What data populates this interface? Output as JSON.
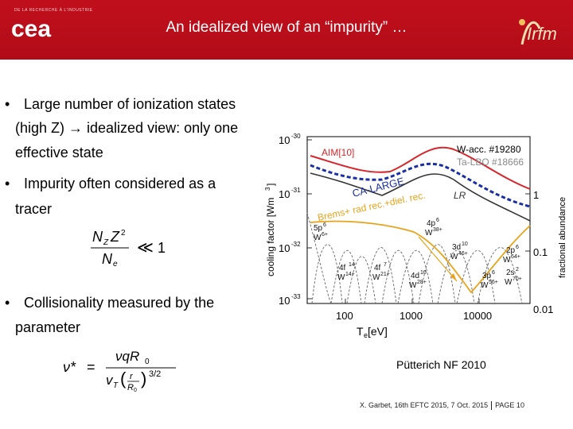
{
  "header": {
    "title": "An idealized view of an “impurity” …",
    "cea_tagline": "DE LA RECHERCHE À L'INDUSTRIE",
    "cea_logo_text": "cea",
    "irfm_logo_text": "Irfm"
  },
  "bullets": [
    {
      "marker": "•",
      "line1": "Large number of ionization states",
      "line2": "(high Z) → idealized view: only one",
      "line3": "effective state"
    },
    {
      "marker": "•",
      "line1": "Impurity often considered as a",
      "line2": "tracer"
    },
    {
      "marker": "•",
      "line1": "Collisionality measured by the",
      "line2": "parameter"
    }
  ],
  "formula1": {
    "lhs_top": "N",
    "lhs_top_sub": "Z",
    "lhs_top_mid": "Z",
    "lhs_top_sup": "2",
    "lhs_bottom": "N",
    "lhs_bottom_sub": "e",
    "rel": "≪",
    "rhs": "1"
  },
  "formula2": {
    "lhs": "ν*",
    "eq": "=",
    "num": "νqR",
    "num_sub": "0",
    "den_v": "v",
    "den_v_sub": "T",
    "den_r": "r",
    "den_r0": "R",
    "den_r0_sub": "0",
    "den_pow": "3/2"
  },
  "plot": {
    "y_ticks": [
      "10",
      "10",
      "10",
      "10"
    ],
    "y_tick_exps": [
      "-30",
      "-31",
      "-32",
      "-33"
    ],
    "y_label": "cooling factor  [Wm",
    "y_label_sup": "3",
    "y_label_end": "]",
    "x_ticks": [
      "100",
      "1000",
      "10000"
    ],
    "x_label": "T",
    "x_label_sub": "e",
    "x_label_end": "  [eV]",
    "right_ticks": [
      "1",
      "0.1",
      "0.01"
    ],
    "right_label": "fractional abundance",
    "labels": {
      "aim": "AIM[10]",
      "wacc": "W-acc. #19280",
      "talbo": "Ta-LBO #18666",
      "calarge": "CA-LARGE",
      "lr": "LR",
      "brems": "Brems+ rad rec.+diel. rec.",
      "s4p": "4p",
      "s4p_sup": "6",
      "s4p_ion": "W",
      "s4p_ion_sup": "38+",
      "s5p": "5p",
      "s5p_sup": "6",
      "s5p_ion": "W",
      "s5p_ion_sup": "6+",
      "s3d": "3d",
      "s3d_sup": "10",
      "s3d_ion": "W",
      "s3d_ion_sup": "46+",
      "s2p": "2p",
      "s2p_sup": "6",
      "s2p_ion": "W",
      "s2p_ion_sup": "64+",
      "s4f14": "4f",
      "s4f14_sup": "14",
      "s4f14_ion": "W",
      "s4f14_ion_sup": "14+",
      "s4f7": "4f",
      "s4f7_sup": "7",
      "s4f7_ion": "W",
      "s4f7_ion_sup": "21+",
      "s4d": "4d",
      "s4d_sup": "10",
      "s4d_ion": "W",
      "s4d_ion_sup": "28+",
      "s3p": "3p",
      "s3p_sup": "6",
      "s3p_ion": "W",
      "s3p_ion_sup": "56+",
      "s2s": "2s",
      "s2s_sup": "2",
      "s2s_ion": "W",
      "s2s_ion_sup": "70+"
    }
  },
  "reference": "Pütterich NF 2010",
  "footer": {
    "author": "X. Garbet, 16th EFTC 2015, 7 Oct. 2015",
    "page": "PAGE 10"
  },
  "colors": {
    "header_red": "#c00f1c",
    "aim_red": "#d6262b",
    "wacc_blue": "#1b2fa5",
    "brems_orange": "#e8a31a"
  }
}
